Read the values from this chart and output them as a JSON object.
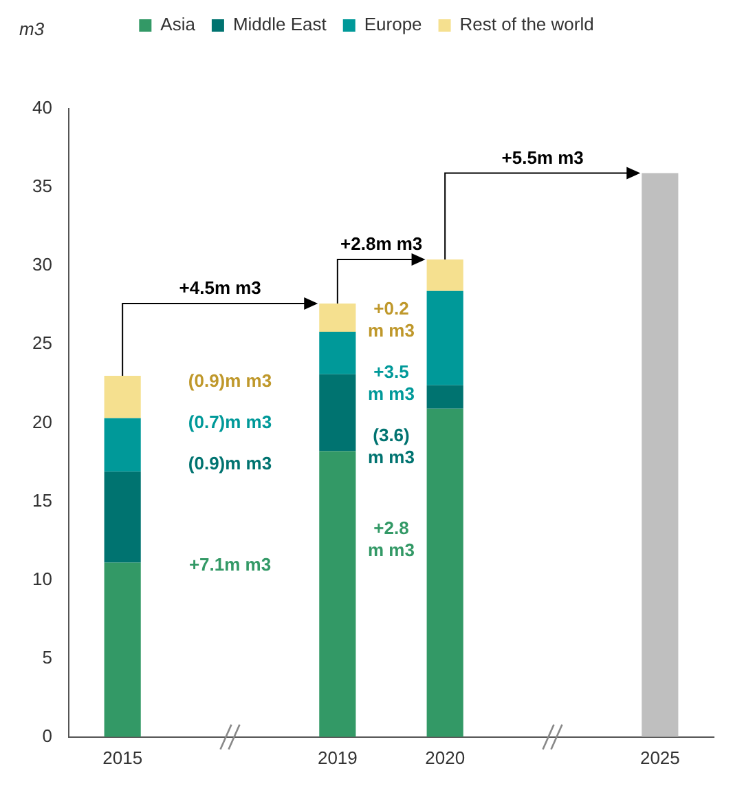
{
  "chart_data": {
    "type": "bar",
    "stacked": true,
    "ylabel": "m3",
    "categories": [
      "2015",
      null,
      "2019",
      "2020",
      null,
      "2025"
    ],
    "series": [
      {
        "name": "Asia",
        "color": "#339966",
        "values": [
          11.1,
          null,
          18.2,
          20.9,
          null,
          null
        ]
      },
      {
        "name": "Middle East",
        "color": "#007370",
        "values": [
          5.8,
          null,
          4.9,
          1.5,
          null,
          null
        ]
      },
      {
        "name": "Europe",
        "color": "#009999",
        "values": [
          3.4,
          null,
          2.7,
          6.0,
          null,
          null
        ]
      },
      {
        "name": "Rest of the world",
        "color": "#f5e08f",
        "values": [
          2.7,
          null,
          1.8,
          2.0,
          null,
          null
        ]
      },
      {
        "color": "#bfbfbf",
        "values": [
          null,
          null,
          null,
          null,
          null,
          35.9
        ]
      }
    ],
    "ylim": [
      0,
      40
    ],
    "yticks": [
      0,
      5,
      10,
      15,
      20,
      25,
      30,
      35,
      40
    ],
    "grid": false,
    "legend": "top",
    "annotations": [
      "+7.1m m3",
      "(0.9)m m3",
      "(0.7)m m3",
      "(0.9)m m3",
      "+4.5m m3",
      "+2.8 m m3",
      "(3.6) m m3",
      "+3.5 m m3",
      "+0.2 m m3",
      {
        "text": "+2.8m m3",
        "x": "2020",
        "y": 30.4
      },
      "+5.5m m3"
    ]
  }
}
